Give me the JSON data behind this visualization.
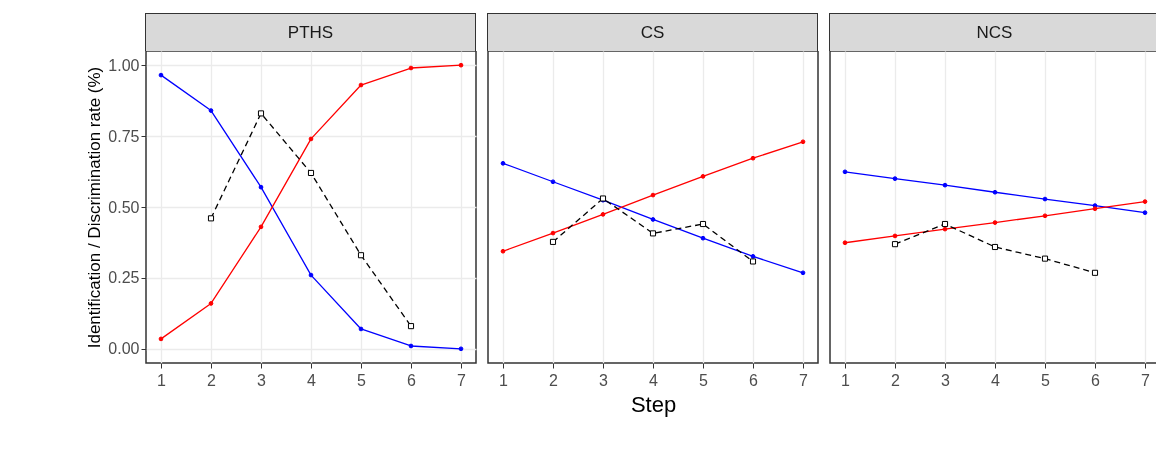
{
  "chart_data": [
    {
      "type": "line",
      "title": "PTHS",
      "ylabel": "Identification / Discrimination rate (%)",
      "x": [
        1,
        2,
        3,
        4,
        5,
        6,
        7
      ],
      "xlim": [
        0.7,
        7.3
      ],
      "xticks": [
        1,
        2,
        3,
        4,
        5,
        6,
        7
      ],
      "ylim": [
        -0.05,
        1.05
      ],
      "yticks": [
        {
          "value": 0,
          "label": "0.00"
        },
        0.25,
        {
          "value": 0.5,
          "label": "0.50"
        },
        0.75,
        {
          "value": 1,
          "label": "1.00"
        }
      ],
      "grid": true,
      "series": [
        {
          "color": "#0000ff",
          "marker": "circle",
          "line_style": "solid",
          "values": [
            0.965,
            0.84,
            0.57,
            0.26,
            0.07,
            0.01,
            0.0
          ]
        },
        {
          "color": "#ff0000",
          "marker": "circle",
          "line_style": "solid",
          "values": [
            0.035,
            0.16,
            0.43,
            0.74,
            0.93,
            0.99,
            1.0
          ]
        },
        {
          "color": "#000000",
          "marker": "square",
          "line_style": "dashed",
          "x": [
            2,
            3,
            4,
            5,
            6
          ],
          "values": [
            0.46,
            0.83,
            0.62,
            0.33,
            0.08
          ]
        }
      ]
    },
    {
      "type": "line",
      "title": "CS",
      "xlabel": "Step",
      "x": [
        1,
        2,
        3,
        4,
        5,
        6,
        7
      ],
      "xlim": [
        0.7,
        7.3
      ],
      "xticks": [
        1,
        2,
        3,
        4,
        5,
        6,
        7
      ],
      "ylim": [
        -0.05,
        1.05
      ],
      "tick_labels": "x",
      "grid": true,
      "series": [
        {
          "color": "#0000ff",
          "marker": "circle",
          "line_style": "solid",
          "values": [
            0.654,
            0.589,
            0.524,
            0.456,
            0.39,
            0.326,
            0.268
          ]
        },
        {
          "color": "#ff0000",
          "marker": "circle",
          "line_style": "solid",
          "values": [
            0.344,
            0.408,
            0.474,
            0.542,
            0.608,
            0.672,
            0.73
          ]
        },
        {
          "color": "#000000",
          "marker": "square",
          "line_style": "dashed",
          "x": [
            2,
            3,
            4,
            5,
            6
          ],
          "values": [
            0.377,
            0.53,
            0.407,
            0.44,
            0.308
          ]
        }
      ]
    },
    {
      "type": "line",
      "title": "NCS",
      "x": [
        1,
        2,
        3,
        4,
        5,
        6,
        7
      ],
      "xlim": [
        0.7,
        7.3
      ],
      "xticks": [
        1,
        2,
        3,
        4,
        5,
        6,
        7
      ],
      "ylim": [
        -0.05,
        1.05
      ],
      "tick_labels": "x",
      "grid": true,
      "series": [
        {
          "color": "#0000ff",
          "marker": "circle",
          "line_style": "solid",
          "values": [
            0.624,
            0.6,
            0.577,
            0.552,
            0.528,
            0.505,
            0.48
          ]
        },
        {
          "color": "#ff0000",
          "marker": "circle",
          "line_style": "solid",
          "values": [
            0.374,
            0.398,
            0.422,
            0.445,
            0.469,
            0.494,
            0.519
          ]
        },
        {
          "color": "#000000",
          "marker": "square",
          "line_style": "dashed",
          "x": [
            2,
            3,
            4,
            5,
            6
          ],
          "values": [
            0.369,
            0.44,
            0.359,
            0.318,
            0.268
          ]
        }
      ]
    }
  ]
}
